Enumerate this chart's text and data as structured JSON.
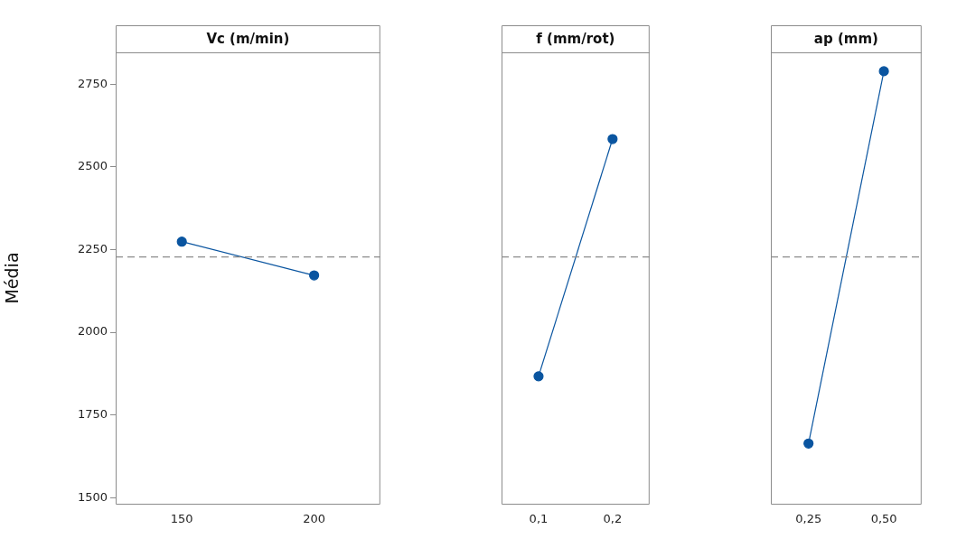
{
  "chart_data": [
    {
      "type": "line",
      "title": "Vc (m/min)",
      "ylabel": "Média",
      "categories": [
        "150",
        "200"
      ],
      "values": [
        2274,
        2172
      ],
      "color": "#0a55a0",
      "marker": "circle",
      "ylim": [
        1482,
        2846
      ],
      "yticks": [
        1500,
        1750,
        2000,
        2250,
        2500,
        2750
      ],
      "ref_lines": [
        {
          "axis": "y",
          "value": 2228,
          "color": "#8c8c8c",
          "line_style": "dashed"
        }
      ],
      "grid": false,
      "legend": false
    },
    {
      "type": "line",
      "title": "f (mm/rot)",
      "categories": [
        "0,1",
        "0,2"
      ],
      "values": [
        1867,
        2584
      ],
      "color": "#0a55a0",
      "marker": "circle",
      "ylim": [
        1482,
        2846
      ],
      "yticks": [
        1500,
        1750,
        2000,
        2250,
        2500,
        2750
      ],
      "tick_labels": "x",
      "ref_lines": [
        {
          "axis": "y",
          "value": 2228,
          "color": "#8c8c8c",
          "line_style": "dashed"
        }
      ],
      "grid": false,
      "legend": false
    },
    {
      "type": "line",
      "title": "ap (mm)",
      "categories": [
        "0,25",
        "0,50"
      ],
      "values": [
        1664,
        2789
      ],
      "color": "#0a55a0",
      "marker": "circle",
      "ylim": [
        1482,
        2846
      ],
      "yticks": [
        1500,
        1750,
        2000,
        2250,
        2500,
        2750
      ],
      "tick_labels": "x",
      "ref_lines": [
        {
          "axis": "y",
          "value": 2228,
          "color": "#8c8c8c",
          "line_style": "dashed"
        }
      ],
      "grid": false,
      "legend": false
    }
  ]
}
